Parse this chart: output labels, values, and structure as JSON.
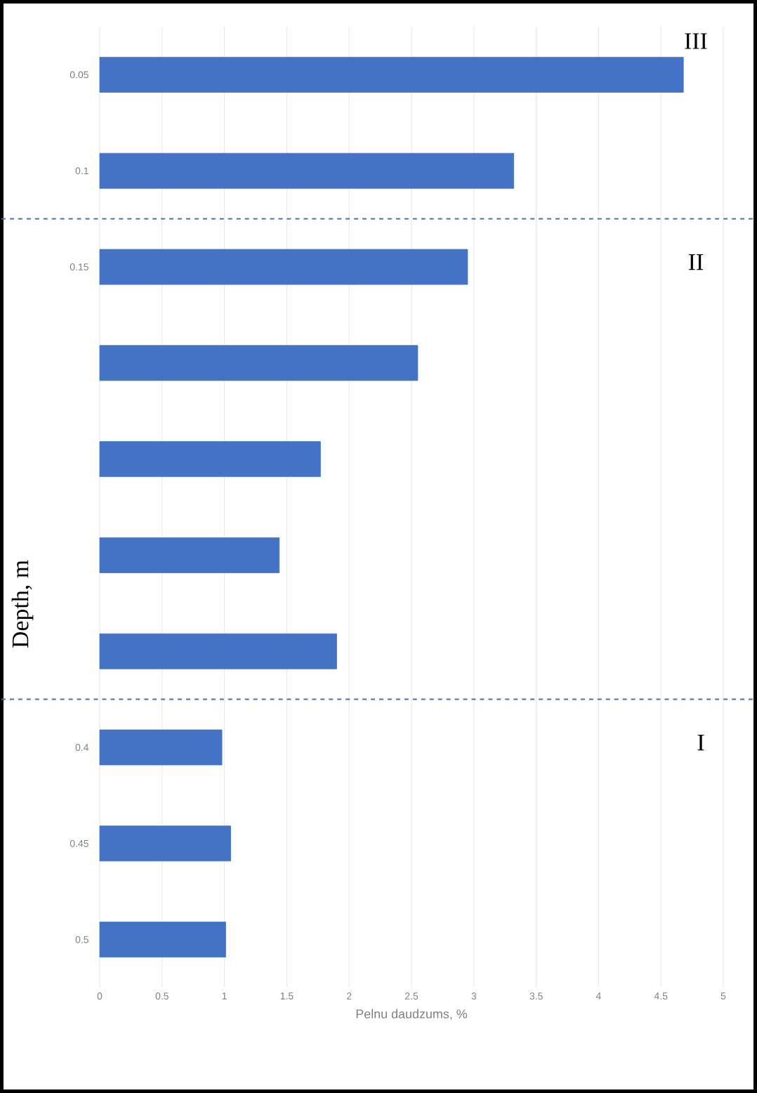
{
  "chart_data": {
    "type": "bar",
    "orientation": "horizontal",
    "xlabel": "Pelnu daudzums, %",
    "ylabel": "Depth, m",
    "categories": [
      "0.05",
      "0.1",
      "0.15",
      null,
      null,
      null,
      null,
      "0.4",
      "0.45",
      "0.5"
    ],
    "values": [
      4.68,
      3.32,
      2.95,
      2.55,
      1.77,
      1.44,
      1.9,
      0.98,
      1.05,
      1.01
    ],
    "color": "#4472c4",
    "xlim": [
      0,
      5
    ],
    "xticks": [
      0,
      0.5,
      1,
      1.5,
      2,
      2.5,
      3,
      3.5,
      4,
      4.5,
      5
    ],
    "grid": "x",
    "annotations": [
      "III",
      "II",
      "I"
    ]
  }
}
